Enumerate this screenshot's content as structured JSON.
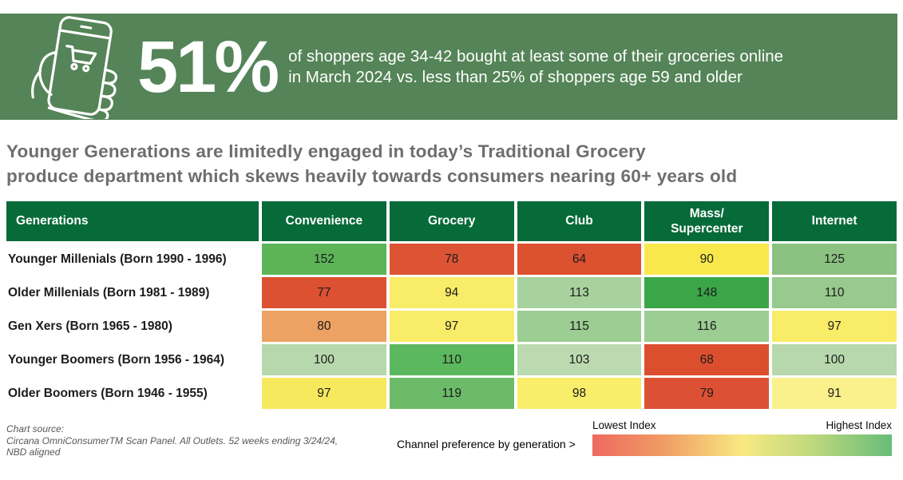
{
  "banner": {
    "bg_color": "#548457",
    "icon": "hand-holding-phone-shopping-cart-icon",
    "stat": "51%",
    "line1": "of shoppers age 34-42 bought at least some of their groceries online",
    "line2": "in March 2024 vs. less than 25% of shoppers age 59 and older"
  },
  "headline": {
    "color": "#6d6e71",
    "line1": "Younger Generations are limitedly engaged in today’s Traditional Grocery",
    "line2": "produce department which skews heavily towards consumers nearing 60+ years old"
  },
  "chart_data": {
    "type": "heatmap",
    "title": "Younger Generations are limitedly engaged in today’s Traditional Grocery produce department which skews heavily towards consumers nearing 60+ years old",
    "row_header": "Generations",
    "columns": [
      "Convenience",
      "Grocery",
      "Club",
      "Mass/\nSupercenter",
      "Internet"
    ],
    "rows": [
      {
        "label": "Younger Millenials (Born 1990 - 1996)",
        "values": [
          152,
          78,
          64,
          90,
          125
        ],
        "colors": [
          "#5cb457",
          "#dd5434",
          "#dc5130",
          "#f8e84c",
          "#8bc282"
        ]
      },
      {
        "label": "Older Millenials (Born 1981 - 1989)",
        "values": [
          77,
          94,
          113,
          148,
          110
        ],
        "colors": [
          "#dc5132",
          "#f8ec68",
          "#a7d19d",
          "#3ba648",
          "#98c98e"
        ]
      },
      {
        "label": "Gen Xers (Born 1965 - 1980)",
        "values": [
          80,
          97,
          115,
          116,
          97
        ],
        "colors": [
          "#eda263",
          "#f8ec68",
          "#9ccd92",
          "#9ccd92",
          "#f8ec68"
        ]
      },
      {
        "label": "Younger Boomers (Born 1956 - 1964)",
        "values": [
          100,
          110,
          103,
          68,
          100
        ],
        "colors": [
          "#b7d8ac",
          "#5cb85f",
          "#bcdab0",
          "#dc4f2e",
          "#b7d8ac"
        ]
      },
      {
        "label": "Older Boomers (Born 1946 - 1955)",
        "values": [
          97,
          119,
          98,
          79,
          91
        ],
        "colors": [
          "#f7e95e",
          "#6cbb68",
          "#f8ee6a",
          "#dc5133",
          "#faf08c"
        ]
      }
    ],
    "header_bg": "#076a39",
    "value_scale_note": "index values, red = lowest, green = highest",
    "legend": {
      "low_label": "Lowest Index",
      "high_label": "Highest Index",
      "gradient_stops": [
        "#ed6a60",
        "#f09d63",
        "#f8e982",
        "#c0d97e",
        "#66bd78"
      ]
    }
  },
  "footer": {
    "source_lines": [
      "Chart source:",
      "Circana OmniConsumerTM Scan Panel. All Outlets. 52 weeks ending 3/24/24,",
      "NBD aligned"
    ],
    "channel_note": "Channel preference by generation >"
  }
}
